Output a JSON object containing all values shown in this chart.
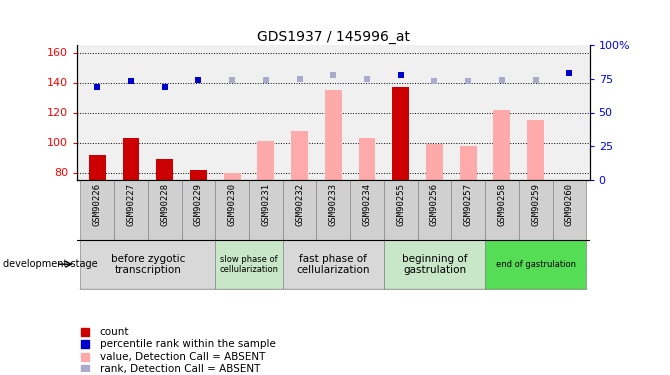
{
  "title": "GDS1937 / 145996_at",
  "samples": [
    "GSM90226",
    "GSM90227",
    "GSM90228",
    "GSM90229",
    "GSM90230",
    "GSM90231",
    "GSM90232",
    "GSM90233",
    "GSM90234",
    "GSM90255",
    "GSM90256",
    "GSM90257",
    "GSM90258",
    "GSM90259",
    "GSM90260"
  ],
  "count_values": [
    92,
    103,
    89,
    82,
    null,
    null,
    null,
    null,
    null,
    137,
    null,
    null,
    null,
    null,
    null
  ],
  "count_absent_values": [
    null,
    null,
    null,
    null,
    80,
    101,
    108,
    135,
    103,
    null,
    99,
    98,
    122,
    115,
    null
  ],
  "percentile_present_pct": [
    69,
    73,
    69,
    74,
    null,
    null,
    null,
    null,
    null,
    78,
    null,
    null,
    null,
    null,
    79
  ],
  "percentile_absent_pct": [
    null,
    null,
    null,
    null,
    74,
    74,
    75,
    78,
    75,
    null,
    73,
    73,
    74,
    74,
    null
  ],
  "ylim_left": [
    75,
    165
  ],
  "ylim_right": [
    0,
    100
  ],
  "yticks_left": [
    80,
    100,
    120,
    140,
    160
  ],
  "yticks_right": [
    0,
    25,
    50,
    75,
    100
  ],
  "stage_groups": [
    {
      "label": "before zygotic\ntranscription",
      "indices": [
        0,
        1,
        2,
        3
      ],
      "color": "#d8d8d8"
    },
    {
      "label": "slow phase of\ncellularization",
      "indices": [
        4,
        5
      ],
      "color": "#c8e6c8"
    },
    {
      "label": "fast phase of\ncellularization",
      "indices": [
        6,
        7,
        8
      ],
      "color": "#d8d8d8"
    },
    {
      "label": "beginning of\ngastrulation",
      "indices": [
        9,
        10,
        11
      ],
      "color": "#c8e6c8"
    },
    {
      "label": "end of gastrulation",
      "indices": [
        12,
        13,
        14
      ],
      "color": "#55dd55"
    }
  ],
  "bar_width": 0.5,
  "count_color": "#cc0000",
  "count_absent_color": "#ffaaaa",
  "percentile_present_color": "#0000cc",
  "percentile_absent_color": "#aaaacc",
  "background_color": "#ffffff",
  "plot_bg_color": "#f0f0f0",
  "tick_bg_color": "#d0d0d0"
}
